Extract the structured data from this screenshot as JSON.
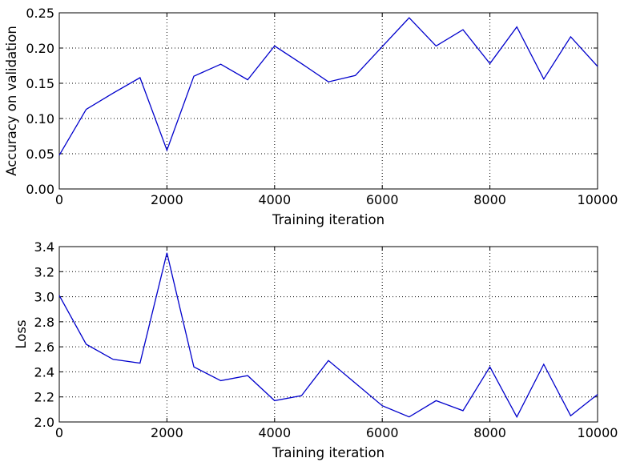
{
  "chart_data": [
    {
      "type": "line",
      "xlabel": "Training iteration",
      "ylabel": "Accuracy on validation",
      "xlim": [
        0,
        10000
      ],
      "ylim": [
        0.0,
        0.25
      ],
      "xticks": [
        "0",
        "2000",
        "4000",
        "6000",
        "8000",
        "10000"
      ],
      "yticks": [
        "0.00",
        "0.05",
        "0.10",
        "0.15",
        "0.20",
        "0.25"
      ],
      "grid": true,
      "color": "#0000cc",
      "x": [
        0,
        500,
        1000,
        1500,
        2000,
        2500,
        3000,
        3500,
        4000,
        4500,
        5000,
        5500,
        6000,
        6500,
        7000,
        7500,
        8000,
        8500,
        9000,
        9500,
        10000
      ],
      "y": [
        0.048,
        0.113,
        0.136,
        0.158,
        0.055,
        0.16,
        0.177,
        0.155,
        0.203,
        0.178,
        0.152,
        0.161,
        0.202,
        0.243,
        0.203,
        0.226,
        0.178,
        0.23,
        0.156,
        0.216,
        0.174
      ]
    },
    {
      "type": "line",
      "xlabel": "Training iteration",
      "ylabel": "Loss",
      "xlim": [
        0,
        10000
      ],
      "ylim": [
        2.0,
        3.4
      ],
      "xticks": [
        "0",
        "2000",
        "4000",
        "6000",
        "8000",
        "10000"
      ],
      "yticks": [
        "2.0",
        "2.2",
        "2.4",
        "2.6",
        "2.8",
        "3.0",
        "3.2",
        "3.4"
      ],
      "grid": true,
      "color": "#0000cc",
      "x": [
        0,
        500,
        1000,
        1500,
        2000,
        2500,
        3000,
        3500,
        4000,
        4500,
        5000,
        5500,
        6000,
        6500,
        7000,
        7500,
        8000,
        8500,
        9000,
        9500,
        10000
      ],
      "y": [
        3.01,
        2.62,
        2.5,
        2.47,
        3.35,
        2.44,
        2.33,
        2.37,
        2.17,
        2.21,
        2.49,
        2.31,
        2.13,
        2.04,
        2.17,
        2.09,
        2.44,
        2.04,
        2.46,
        2.05,
        2.22
      ]
    }
  ]
}
